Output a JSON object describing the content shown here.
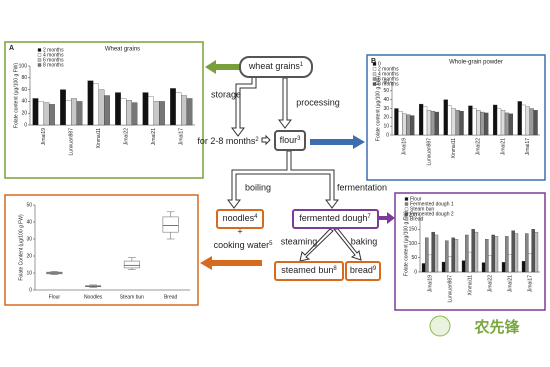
{
  "nodes": [
    {
      "label": "wheat grains",
      "ref": "1"
    },
    {
      "label": "for 2-8 months",
      "ref": "2"
    },
    {
      "label": "flour",
      "ref": "3"
    },
    {
      "label": "noodles",
      "ref": "4"
    },
    {
      "label": "cooking water",
      "ref": "5"
    },
    {
      "label": "fermented dough",
      "ref": "7"
    },
    {
      "label": "steamed bun",
      "ref": "8"
    },
    {
      "label": "bread",
      "ref": "9"
    }
  ],
  "edge_labels": {
    "storage": "storage",
    "processing": "processing",
    "boiling": "boiling",
    "fermentation": "fermentation",
    "steaming": "steaming",
    "baking": "baking",
    "plus": "+"
  },
  "logo": "农先锋",
  "panel_a": {
    "type": "bar",
    "letter": "A",
    "title": "Wheat grains",
    "y_label": "Folate content (μg/100 g FW)",
    "categories": [
      "Jimai19",
      "Lunxuan987",
      "Xinmai11",
      "Jimai22",
      "Jimai21",
      "Jimai17"
    ],
    "series": [
      {
        "name": "2 months",
        "color": "#111111",
        "values": [
          45,
          60,
          75,
          55,
          55,
          62
        ]
      },
      {
        "name": "4 months",
        "color": "#ffffff",
        "values": [
          40,
          42,
          70,
          45,
          48,
          55
        ]
      },
      {
        "name": "6 months",
        "color": "#c8c8c8",
        "values": [
          38,
          45,
          60,
          42,
          40,
          50
        ]
      },
      {
        "name": "8 months",
        "color": "#777777",
        "values": [
          35,
          40,
          50,
          38,
          40,
          45
        ]
      }
    ],
    "ylim": [
      0,
      100
    ],
    "yticks": [
      0,
      20,
      40,
      60,
      80,
      100
    ]
  },
  "panel_b": {
    "type": "bar",
    "letter": "B",
    "title": "Whole-grain powder",
    "y_label": "Folate content (μg/100 g FW)",
    "categories": [
      "Jimai19",
      "Lunxuan987",
      "Xinmai11",
      "Jimai22",
      "Jimai21",
      "Jimai17"
    ],
    "series": [
      {
        "name": "0",
        "color": "#111111",
        "values": [
          30,
          35,
          40,
          33,
          34,
          38
        ]
      },
      {
        "name": "2 months",
        "color": "#ffffff",
        "values": [
          27,
          32,
          33,
          30,
          30,
          34
        ]
      },
      {
        "name": "4 months",
        "color": "#dddddd",
        "values": [
          24,
          28,
          30,
          28,
          28,
          32
        ]
      },
      {
        "name": "6 months",
        "color": "#999999",
        "values": [
          23,
          27,
          28,
          26,
          25,
          30
        ]
      },
      {
        "name": "8 months",
        "color": "#555555",
        "values": [
          22,
          26,
          27,
          25,
          24,
          28
        ]
      }
    ],
    "ylim": [
      0,
      60
    ],
    "yticks": [
      0,
      10,
      20,
      30,
      40,
      50,
      60
    ]
  },
  "panel_c": {
    "type": "box",
    "y_label": "Folate Content (μg/100 g FW)",
    "categories": [
      "Flour",
      "Noodles",
      "Steam bun",
      "Bread"
    ],
    "boxes": [
      {
        "min": 9,
        "q1": 9.5,
        "median": 10,
        "q3": 10.5,
        "max": 11
      },
      {
        "min": 1.5,
        "q1": 2,
        "median": 2.2,
        "q3": 2.5,
        "max": 3
      },
      {
        "min": 12,
        "q1": 13,
        "median": 14.5,
        "q3": 17,
        "max": 19
      },
      {
        "min": 30,
        "q1": 34,
        "median": 38,
        "q3": 43,
        "max": 46
      }
    ],
    "ylim": [
      0,
      50
    ],
    "yticks": [
      0,
      10,
      20,
      30,
      40,
      50
    ]
  },
  "panel_d": {
    "type": "bar",
    "y_label": "Folate content (μg/100 g FW)",
    "categories": [
      "Jimai19",
      "Lunxuan987",
      "Xinmai11",
      "Jimai22",
      "Jimai21",
      "Jimai17"
    ],
    "series": [
      {
        "name": "Flour",
        "color": "#111111",
        "values": [
          30,
          35,
          40,
          33,
          34,
          38
        ]
      },
      {
        "name": "Fermented dough 1",
        "color": "#888888",
        "values": [
          120,
          110,
          130,
          115,
          125,
          135
        ]
      },
      {
        "name": "Steam bun",
        "color": "#ffffff",
        "values": [
          60,
          55,
          70,
          58,
          62,
          66
        ]
      },
      {
        "name": "Fermented dough 2",
        "color": "#555555",
        "values": [
          140,
          120,
          150,
          130,
          145,
          150
        ]
      },
      {
        "name": "Bread",
        "color": "#bbbbbb",
        "values": [
          130,
          115,
          140,
          125,
          135,
          140
        ]
      }
    ],
    "ylim": [
      0,
      200
    ],
    "yticks": [
      0,
      50,
      100,
      150,
      200
    ]
  }
}
